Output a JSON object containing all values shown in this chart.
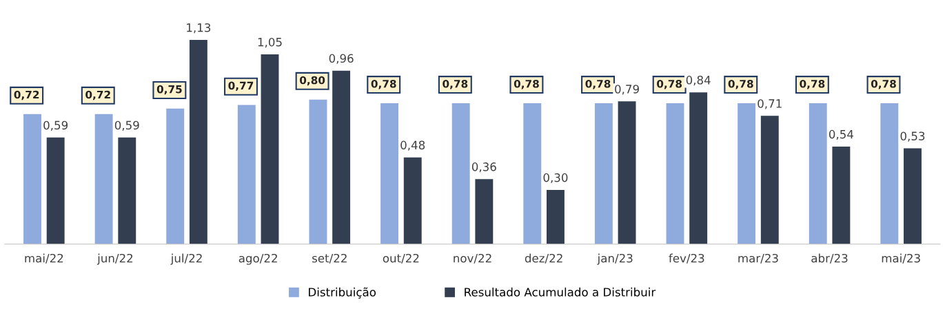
{
  "chart_data": {
    "type": "bar",
    "categories": [
      "mai/22",
      "jun/22",
      "jul/22",
      "ago/22",
      "set/22",
      "out/22",
      "nov/22",
      "dez/22",
      "jan/23",
      "fev/23",
      "mar/23",
      "abr/23",
      "mai/23"
    ],
    "series": [
      {
        "name": "Distribuição",
        "color": "#8faadc",
        "values": [
          0.72,
          0.72,
          0.75,
          0.77,
          0.8,
          0.78,
          0.78,
          0.78,
          0.78,
          0.78,
          0.78,
          0.78,
          0.78
        ],
        "value_labels": [
          "0,72",
          "0,72",
          "0,75",
          "0,77",
          "0,80",
          "0,78",
          "0,78",
          "0,78",
          "0,78",
          "0,78",
          "0,78",
          "0,78",
          "0,78"
        ]
      },
      {
        "name": "Resultado Acumulado a Distribuir",
        "color": "#333f50",
        "values": [
          0.59,
          0.59,
          1.13,
          1.05,
          0.96,
          0.48,
          0.36,
          0.3,
          0.79,
          0.84,
          0.71,
          0.54,
          0.53
        ],
        "value_labels": [
          "0,59",
          "0,59",
          "1,13",
          "1,05",
          "0,96",
          "0,48",
          "0,36",
          "0,30",
          "0,79",
          "0,84",
          "0,71",
          "0,54",
          "0,53"
        ]
      }
    ],
    "legend": "bottom",
    "grid": false
  }
}
